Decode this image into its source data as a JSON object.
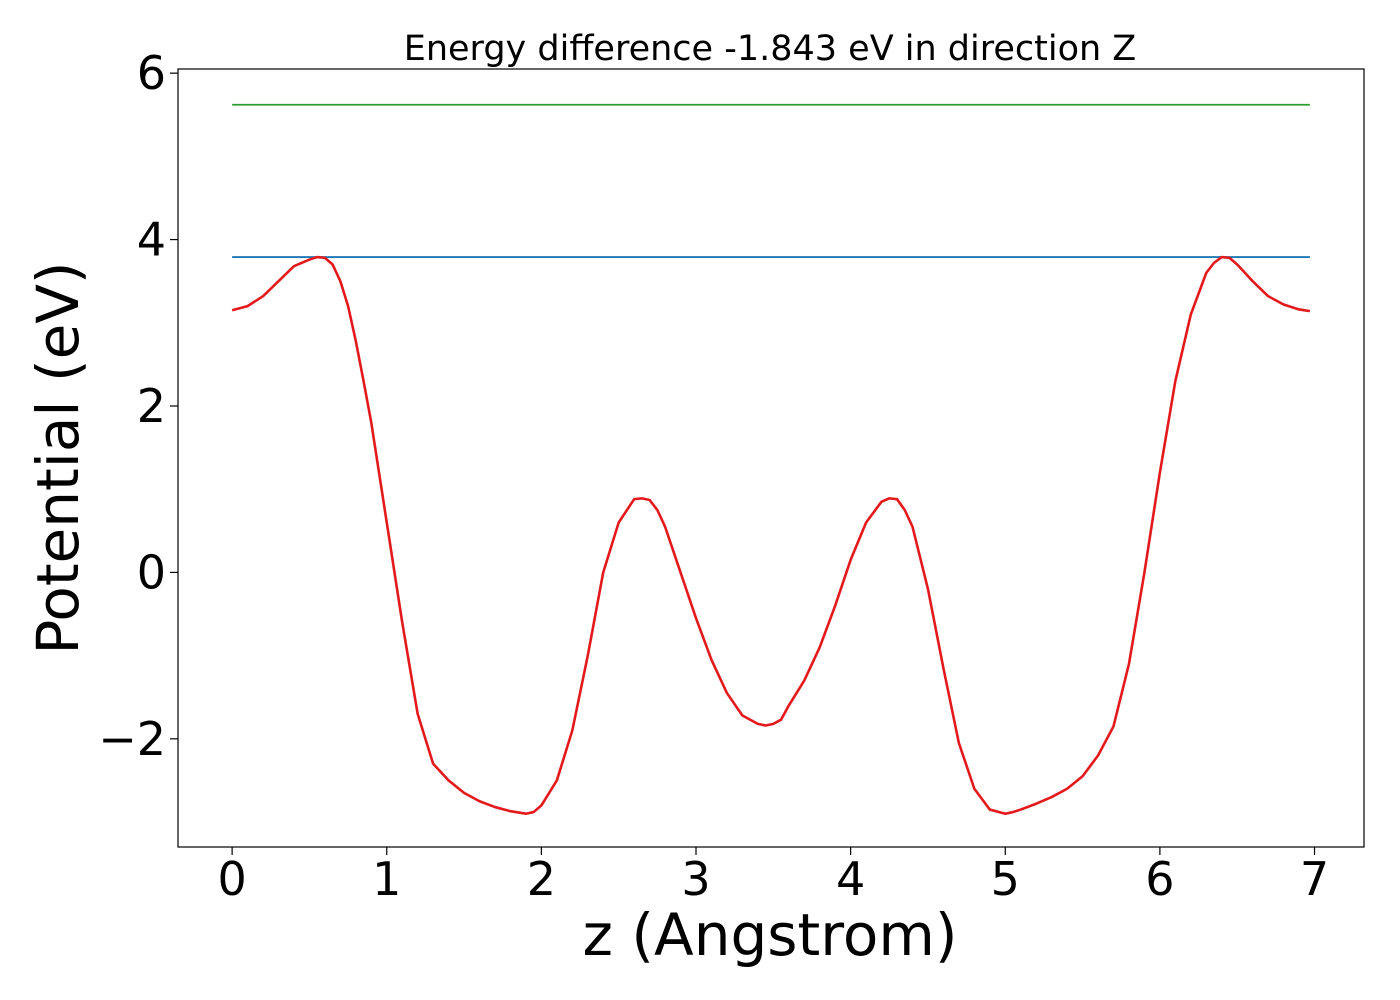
{
  "chart_data": {
    "type": "line",
    "title": "Energy difference -1.843 eV in direction Z",
    "xlabel": "z (Angstrom)",
    "ylabel": "Potential (eV)",
    "xlim": [
      -0.35,
      7.32
    ],
    "ylim": [
      -3.3,
      6.05
    ],
    "xticks": [
      0,
      1,
      2,
      3,
      4,
      5,
      6,
      7
    ],
    "xtick_labels": [
      "0",
      "1",
      "2",
      "3",
      "4",
      "5",
      "6",
      "7"
    ],
    "yticks": [
      -2,
      0,
      2,
      4,
      6
    ],
    "ytick_labels": [
      "−2",
      "0",
      "2",
      "4",
      "6"
    ],
    "grid": false,
    "series": [
      {
        "color": "#2ca02c",
        "x": [
          0,
          6.97
        ],
        "y": [
          5.62,
          5.62
        ]
      },
      {
        "color": "#1f77b4",
        "x": [
          0,
          6.97
        ],
        "y": [
          3.79,
          3.79
        ]
      },
      {
        "color": "#e31a1c",
        "x": [
          0.0,
          0.1,
          0.2,
          0.3,
          0.4,
          0.5,
          0.55,
          0.6,
          0.65,
          0.7,
          0.75,
          0.8,
          0.85,
          0.9,
          1.0,
          1.1,
          1.2,
          1.3,
          1.4,
          1.5,
          1.6,
          1.7,
          1.8,
          1.9,
          1.95,
          2.0,
          2.1,
          2.2,
          2.3,
          2.4,
          2.5,
          2.6,
          2.65,
          2.7,
          2.75,
          2.8,
          2.9,
          3.0,
          3.1,
          3.2,
          3.3,
          3.4,
          3.45,
          3.5,
          3.55,
          3.6,
          3.7,
          3.8,
          3.9,
          4.0,
          4.1,
          4.2,
          4.25,
          4.3,
          4.35,
          4.4,
          4.5,
          4.6,
          4.7,
          4.8,
          4.9,
          5.0,
          5.05,
          5.1,
          5.2,
          5.3,
          5.4,
          5.5,
          5.6,
          5.7,
          5.8,
          5.9,
          6.0,
          6.1,
          6.2,
          6.3,
          6.35,
          6.4,
          6.45,
          6.5,
          6.6,
          6.7,
          6.8,
          6.9,
          6.97
        ],
        "y": [
          3.15,
          3.2,
          3.32,
          3.5,
          3.68,
          3.76,
          3.79,
          3.78,
          3.7,
          3.5,
          3.2,
          2.78,
          2.3,
          1.8,
          0.6,
          -0.6,
          -1.7,
          -2.3,
          -2.5,
          -2.65,
          -2.75,
          -2.82,
          -2.87,
          -2.9,
          -2.88,
          -2.8,
          -2.5,
          -1.9,
          -1.0,
          0.0,
          0.6,
          0.88,
          0.89,
          0.87,
          0.75,
          0.55,
          0.0,
          -0.55,
          -1.05,
          -1.45,
          -1.72,
          -1.82,
          -1.84,
          -1.82,
          -1.77,
          -1.6,
          -1.3,
          -0.9,
          -0.4,
          0.15,
          0.6,
          0.85,
          0.89,
          0.88,
          0.75,
          0.55,
          -0.2,
          -1.15,
          -2.05,
          -2.6,
          -2.85,
          -2.9,
          -2.88,
          -2.85,
          -2.78,
          -2.7,
          -2.6,
          -2.45,
          -2.2,
          -1.85,
          -1.1,
          0.0,
          1.2,
          2.3,
          3.1,
          3.6,
          3.72,
          3.79,
          3.78,
          3.7,
          3.5,
          3.32,
          3.22,
          3.16,
          3.14
        ]
      }
    ]
  }
}
